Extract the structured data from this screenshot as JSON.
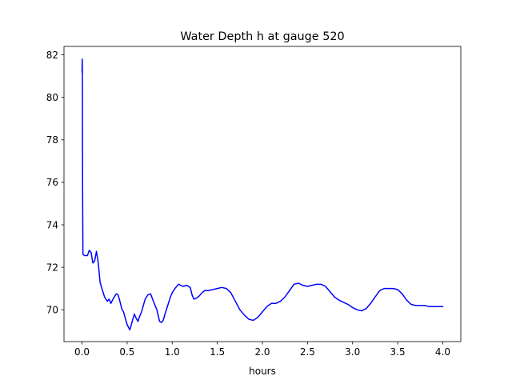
{
  "chart_data": {
    "type": "line",
    "title": "Water Depth h at gauge 520",
    "xlabel": "hours",
    "ylabel": "",
    "xlim": [
      -0.2,
      4.2
    ],
    "ylim": [
      68.5,
      82.4
    ],
    "xticks": [
      0.0,
      0.5,
      1.0,
      1.5,
      2.0,
      2.5,
      3.0,
      3.5,
      4.0
    ],
    "xtick_labels": [
      "0.0",
      "0.5",
      "1.0",
      "1.5",
      "2.0",
      "2.5",
      "3.0",
      "3.5",
      "4.0"
    ],
    "yticks": [
      70,
      72,
      74,
      76,
      78,
      80,
      82
    ],
    "ytick_labels": [
      "70",
      "72",
      "74",
      "76",
      "78",
      "80",
      "82"
    ],
    "grid": false,
    "series": [
      {
        "color": "#0000ff",
        "x": [
          0.0,
          0.002,
          0.004,
          0.006,
          0.01,
          0.03,
          0.06,
          0.08,
          0.1,
          0.12,
          0.14,
          0.16,
          0.18,
          0.2,
          0.22,
          0.25,
          0.28,
          0.3,
          0.32,
          0.35,
          0.38,
          0.4,
          0.42,
          0.44,
          0.46,
          0.48,
          0.5,
          0.53,
          0.56,
          0.58,
          0.6,
          0.62,
          0.64,
          0.66,
          0.68,
          0.7,
          0.73,
          0.76,
          0.8,
          0.83,
          0.86,
          0.88,
          0.9,
          0.92,
          0.95,
          0.98,
          1.0,
          1.03,
          1.07,
          1.12,
          1.16,
          1.2,
          1.22,
          1.24,
          1.27,
          1.3,
          1.33,
          1.36,
          1.4,
          1.45,
          1.5,
          1.55,
          1.6,
          1.65,
          1.7,
          1.75,
          1.8,
          1.85,
          1.9,
          1.95,
          2.0,
          2.05,
          2.1,
          2.15,
          2.2,
          2.25,
          2.3,
          2.35,
          2.4,
          2.45,
          2.5,
          2.55,
          2.6,
          2.65,
          2.7,
          2.75,
          2.8,
          2.85,
          2.9,
          2.95,
          3.0,
          3.05,
          3.1,
          3.15,
          3.2,
          3.25,
          3.3,
          3.35,
          3.4,
          3.45,
          3.5,
          3.55,
          3.6,
          3.65,
          3.7,
          3.75,
          3.8,
          3.85,
          3.9,
          3.95,
          4.0
        ],
        "y": [
          81.2,
          81.8,
          81.0,
          76.0,
          72.6,
          72.55,
          72.55,
          72.8,
          72.7,
          72.2,
          72.3,
          72.75,
          72.2,
          71.3,
          71.0,
          70.6,
          70.4,
          70.5,
          70.3,
          70.55,
          70.75,
          70.7,
          70.4,
          70.05,
          69.9,
          69.6,
          69.3,
          69.05,
          69.5,
          69.8,
          69.6,
          69.45,
          69.7,
          69.9,
          70.2,
          70.5,
          70.7,
          70.75,
          70.3,
          70.0,
          69.45,
          69.4,
          69.5,
          69.8,
          70.2,
          70.6,
          70.8,
          71.0,
          71.2,
          71.1,
          71.15,
          71.05,
          70.7,
          70.5,
          70.55,
          70.65,
          70.8,
          70.9,
          70.9,
          70.95,
          71.0,
          71.05,
          71.0,
          70.8,
          70.4,
          70.0,
          69.75,
          69.55,
          69.5,
          69.65,
          69.9,
          70.15,
          70.3,
          70.3,
          70.4,
          70.6,
          70.9,
          71.2,
          71.25,
          71.15,
          71.1,
          71.15,
          71.2,
          71.2,
          71.1,
          70.85,
          70.6,
          70.45,
          70.35,
          70.25,
          70.1,
          70.0,
          69.95,
          70.05,
          70.3,
          70.6,
          70.9,
          71.0,
          71.0,
          71.0,
          70.95,
          70.75,
          70.45,
          70.25,
          70.2,
          70.2,
          70.2,
          70.15,
          70.15,
          70.15,
          70.15
        ]
      }
    ]
  }
}
